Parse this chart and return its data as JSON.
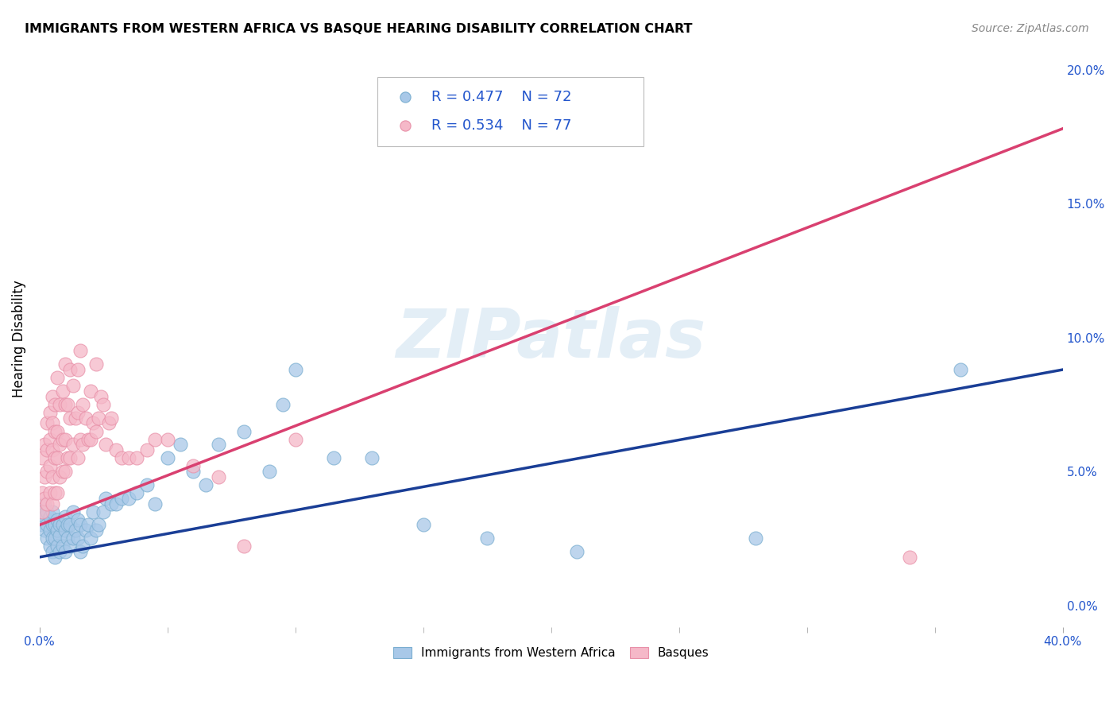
{
  "title": "IMMIGRANTS FROM WESTERN AFRICA VS BASQUE HEARING DISABILITY CORRELATION CHART",
  "source": "Source: ZipAtlas.com",
  "ylabel": "Hearing Disability",
  "legend_r_blue": "R = 0.477",
  "legend_n_blue": "N = 72",
  "legend_r_pink": "R = 0.534",
  "legend_n_pink": "N = 77",
  "legend_label_blue": "Immigrants from Western Africa",
  "legend_label_pink": "Basques",
  "watermark": "ZIPatlas",
  "blue_fill_color": "#a8c8e8",
  "pink_fill_color": "#f5b8c8",
  "blue_edge_color": "#7aaed0",
  "pink_edge_color": "#e890a8",
  "blue_line_color": "#1a3e96",
  "pink_line_color": "#d94070",
  "text_blue": "#2255cc",
  "xlim": [
    0.0,
    0.4
  ],
  "ylim": [
    -0.008,
    0.207
  ],
  "blue_scatter_x": [
    0.001,
    0.001,
    0.002,
    0.002,
    0.002,
    0.003,
    0.003,
    0.003,
    0.004,
    0.004,
    0.004,
    0.005,
    0.005,
    0.005,
    0.005,
    0.006,
    0.006,
    0.006,
    0.007,
    0.007,
    0.007,
    0.008,
    0.008,
    0.008,
    0.009,
    0.009,
    0.01,
    0.01,
    0.01,
    0.011,
    0.011,
    0.012,
    0.012,
    0.013,
    0.013,
    0.014,
    0.015,
    0.015,
    0.016,
    0.016,
    0.017,
    0.018,
    0.019,
    0.02,
    0.021,
    0.022,
    0.023,
    0.025,
    0.026,
    0.028,
    0.03,
    0.032,
    0.035,
    0.038,
    0.042,
    0.045,
    0.05,
    0.055,
    0.06,
    0.065,
    0.07,
    0.08,
    0.09,
    0.095,
    0.1,
    0.115,
    0.13,
    0.15,
    0.175,
    0.21,
    0.28,
    0.36
  ],
  "blue_scatter_y": [
    0.03,
    0.035,
    0.028,
    0.033,
    0.038,
    0.025,
    0.03,
    0.035,
    0.022,
    0.028,
    0.033,
    0.02,
    0.025,
    0.03,
    0.035,
    0.018,
    0.025,
    0.03,
    0.022,
    0.028,
    0.032,
    0.02,
    0.026,
    0.03,
    0.022,
    0.03,
    0.02,
    0.028,
    0.033,
    0.025,
    0.03,
    0.022,
    0.03,
    0.025,
    0.035,
    0.028,
    0.025,
    0.032,
    0.02,
    0.03,
    0.022,
    0.028,
    0.03,
    0.025,
    0.035,
    0.028,
    0.03,
    0.035,
    0.04,
    0.038,
    0.038,
    0.04,
    0.04,
    0.042,
    0.045,
    0.038,
    0.055,
    0.06,
    0.05,
    0.045,
    0.06,
    0.065,
    0.05,
    0.075,
    0.088,
    0.055,
    0.055,
    0.03,
    0.025,
    0.02,
    0.025,
    0.088
  ],
  "pink_scatter_x": [
    0.001,
    0.001,
    0.001,
    0.002,
    0.002,
    0.002,
    0.003,
    0.003,
    0.003,
    0.003,
    0.004,
    0.004,
    0.004,
    0.004,
    0.005,
    0.005,
    0.005,
    0.005,
    0.005,
    0.006,
    0.006,
    0.006,
    0.006,
    0.007,
    0.007,
    0.007,
    0.007,
    0.008,
    0.008,
    0.008,
    0.009,
    0.009,
    0.009,
    0.01,
    0.01,
    0.01,
    0.01,
    0.011,
    0.011,
    0.012,
    0.012,
    0.012,
    0.013,
    0.013,
    0.014,
    0.015,
    0.015,
    0.015,
    0.016,
    0.016,
    0.017,
    0.017,
    0.018,
    0.019,
    0.02,
    0.02,
    0.021,
    0.022,
    0.022,
    0.023,
    0.024,
    0.025,
    0.026,
    0.027,
    0.028,
    0.03,
    0.032,
    0.035,
    0.038,
    0.042,
    0.045,
    0.05,
    0.06,
    0.07,
    0.08,
    0.1,
    0.34
  ],
  "pink_scatter_y": [
    0.035,
    0.042,
    0.055,
    0.04,
    0.048,
    0.06,
    0.038,
    0.05,
    0.058,
    0.068,
    0.042,
    0.052,
    0.062,
    0.072,
    0.038,
    0.048,
    0.058,
    0.068,
    0.078,
    0.042,
    0.055,
    0.065,
    0.075,
    0.042,
    0.055,
    0.065,
    0.085,
    0.048,
    0.06,
    0.075,
    0.05,
    0.062,
    0.08,
    0.05,
    0.062,
    0.075,
    0.09,
    0.055,
    0.075,
    0.055,
    0.07,
    0.088,
    0.06,
    0.082,
    0.07,
    0.055,
    0.072,
    0.088,
    0.062,
    0.095,
    0.06,
    0.075,
    0.07,
    0.062,
    0.062,
    0.08,
    0.068,
    0.065,
    0.09,
    0.07,
    0.078,
    0.075,
    0.06,
    0.068,
    0.07,
    0.058,
    0.055,
    0.055,
    0.055,
    0.058,
    0.062,
    0.062,
    0.052,
    0.048,
    0.022,
    0.062,
    0.018
  ],
  "blue_trendline_x": [
    0.0,
    0.4
  ],
  "blue_trendline_y": [
    0.018,
    0.088
  ],
  "pink_trendline_x": [
    0.0,
    0.4
  ],
  "pink_trendline_y": [
    0.03,
    0.178
  ]
}
